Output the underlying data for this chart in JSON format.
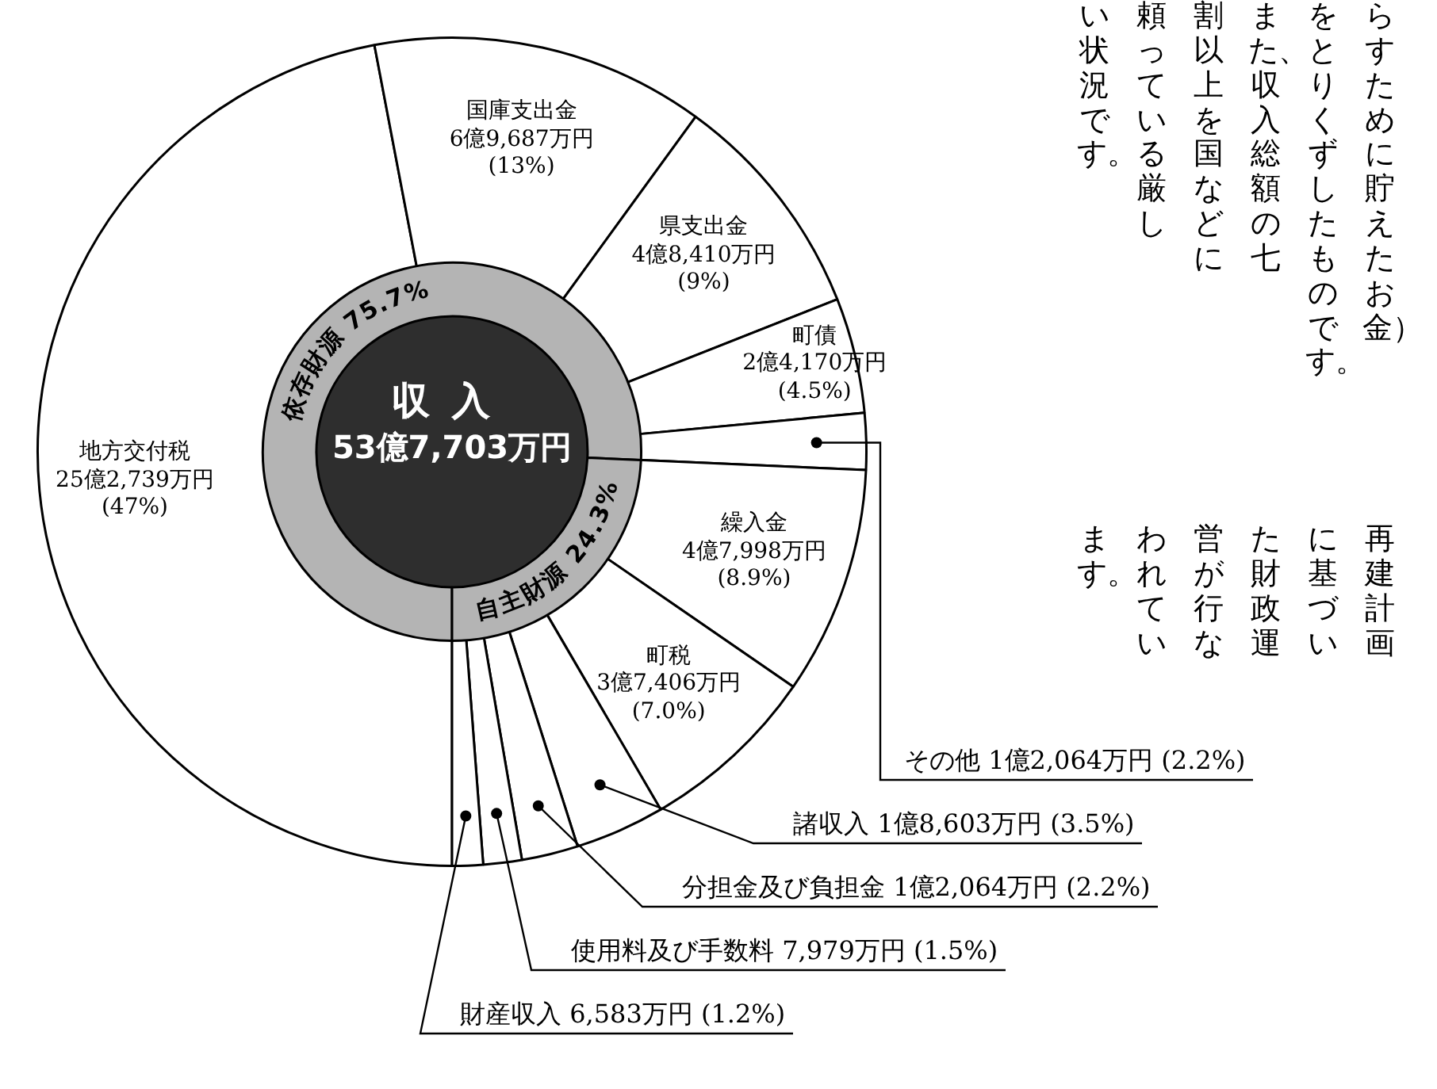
{
  "chart_data": [
    {
      "type": "donut",
      "categories": [
        "地方交付税 25億2,739万円",
        "国庫支出金 6億9,687万円",
        "県支出金 4億8,410万円",
        "町債 2億4,170万円",
        "その他 1億2,064万円",
        "繰入金 4億7,998万円",
        "町税 3億7,406万円",
        "諸収入 1億8,603万円",
        "分担金及び負担金 1億2,064万円",
        "使用料及び手数料 7,979万円",
        "財産収入 6,583万円"
      ],
      "values": [
        47,
        13,
        9,
        4.5,
        2.2,
        8.9,
        7.0,
        3.5,
        2.2,
        1.5,
        1.2
      ],
      "value_labels": [
        "(47%)",
        "(13%)",
        "(9%)",
        "(4.5%)",
        "(2.2%)",
        "(8.9%)",
        "(7.0%)",
        "(3.5%)",
        "(2.2%)",
        "(1.5%)",
        "(1.2%)"
      ],
      "colors": [
        "#ffffff",
        "#ffffff",
        "#ffffff",
        "#ffffff",
        "#ffffff",
        "#ffffff",
        "#ffffff",
        "#ffffff",
        "#ffffff",
        "#ffffff",
        "#ffffff"
      ],
      "legend": false,
      "annotations": [
        "らすために貯えたお金）",
        "をとりくずしたものです。",
        "また、収入総額の七",
        "割以上を国などに",
        "頼っている厳し",
        "い状況です。",
        "再建計画",
        "に基づい",
        "た財政運",
        "営が行な",
        "われてい",
        "ます。"
      ]
    },
    {
      "type": "donut",
      "title": "収入",
      "subtitle": "53億7,703万円",
      "categories": [
        "依存財源",
        "自主財源"
      ],
      "values": [
        75.7,
        24.3
      ],
      "value_labels": [
        "75.7%",
        "24.3%"
      ],
      "colors": [
        "#b4b4b4",
        "#b4b4b4"
      ],
      "legend": false
    }
  ]
}
